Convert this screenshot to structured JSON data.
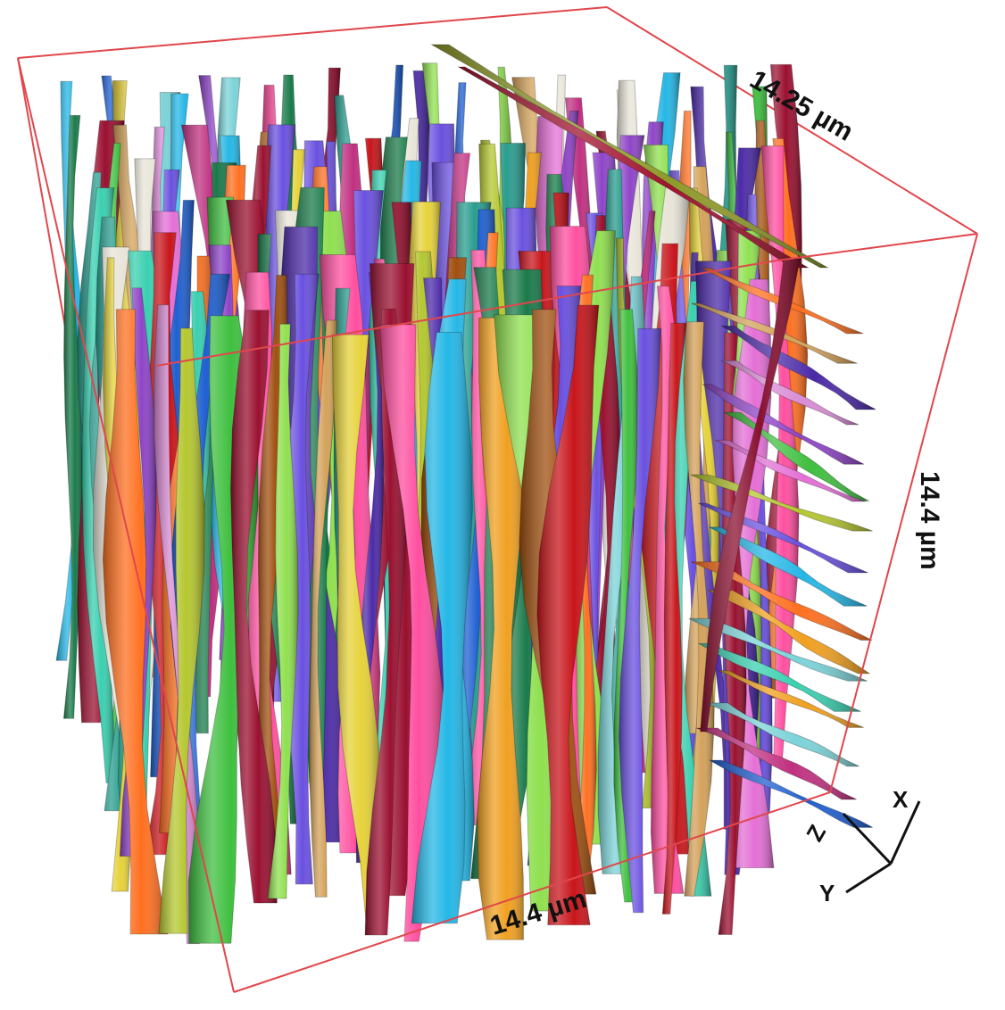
{
  "figure": {
    "dimensions": {
      "top_depth": "14.25 µm",
      "right_height": "14.4 µm",
      "bottom_width": "14.4 µm"
    },
    "axes": {
      "x": "X",
      "y": "Y",
      "z": "Z"
    },
    "colors": {
      "bounding_box": "#e0474c",
      "palette": [
        "#c8151b",
        "#8e44c8",
        "#e6d23a",
        "#2a9d8f",
        "#3fbf3f",
        "#1f5fd1",
        "#e46fd6",
        "#f0a020",
        "#7bd3d8",
        "#9a1030",
        "#b5c730",
        "#d98cd5",
        "#3ad0b0",
        "#e8e4d8",
        "#1a7a4a",
        "#ff4fa0",
        "#6a50e0",
        "#24b7e6",
        "#d4a25a",
        "#a05010",
        "#ff7020",
        "#4b2aa8",
        "#90e050",
        "#c03080"
      ]
    }
  }
}
